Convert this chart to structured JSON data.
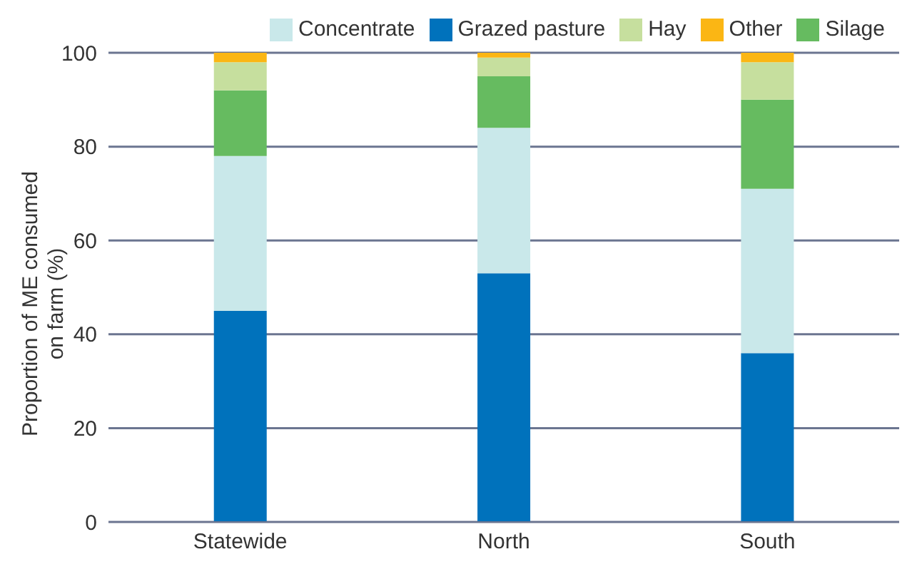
{
  "chart_data": {
    "type": "bar",
    "stacked": true,
    "ylabel": "Proportion of ME consumed on farm (%)",
    "categories": [
      "Statewide",
      "North",
      "South"
    ],
    "series": [
      {
        "name": "Grazed pasture",
        "color": "#0072bc",
        "values": [
          45,
          53,
          36
        ]
      },
      {
        "name": "Concentrate",
        "color": "#c9e8ea",
        "values": [
          33,
          31,
          35
        ]
      },
      {
        "name": "Silage",
        "color": "#66bb60",
        "values": [
          14,
          11,
          19
        ]
      },
      {
        "name": "Hay",
        "color": "#c6df9e",
        "values": [
          6,
          4,
          8
        ]
      },
      {
        "name": "Other",
        "color": "#fbb614",
        "values": [
          2,
          1,
          2
        ]
      }
    ],
    "ylim": [
      0,
      100
    ],
    "yticks": [
      0,
      20,
      40,
      60,
      80,
      100
    ],
    "grid": "y",
    "legend": "top"
  }
}
